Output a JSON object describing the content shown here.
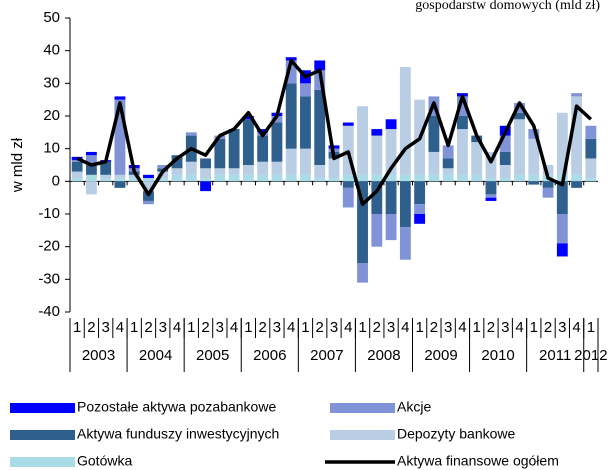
{
  "chart_data": {
    "type": "stacked-bar-line",
    "title": "gospodarstw domowych (mld zł)",
    "y_label": "w mld zł",
    "categories": [
      "1",
      "2",
      "3",
      "4",
      "1",
      "2",
      "3",
      "4",
      "1",
      "2",
      "3",
      "4",
      "1",
      "2",
      "3",
      "4",
      "1",
      "2",
      "3",
      "4",
      "1",
      "2",
      "3",
      "4",
      "1",
      "2",
      "3",
      "4",
      "1",
      "2",
      "3",
      "4",
      "1",
      "2",
      "3",
      "4",
      "1"
    ],
    "years": [
      "2003",
      "2004",
      "2005",
      "2006",
      "2007",
      "2008",
      "2009",
      "2010",
      "2011",
      "2012"
    ],
    "ylim": [
      -40,
      50
    ],
    "yticks": [
      -40,
      -30,
      -20,
      -10,
      0,
      10,
      20,
      30,
      40,
      50
    ],
    "series": [
      {
        "name": "Pozostałe aktywa pozabankowe",
        "color": "#0000ff",
        "values": [
          1,
          1,
          0.5,
          1,
          1,
          1,
          0,
          0,
          0,
          -3,
          0,
          0,
          1,
          1,
          1,
          1,
          4,
          3,
          1,
          1,
          0,
          2,
          3,
          0,
          -3,
          0,
          0,
          1,
          0,
          -1,
          3,
          0,
          0,
          0,
          -4,
          0,
          0
        ]
      },
      {
        "name": "Akcje",
        "color": "#7f93d6",
        "values": [
          0.5,
          3,
          0,
          23,
          1,
          -1,
          1,
          0,
          1,
          0,
          1,
          0,
          0,
          1,
          2,
          7,
          4,
          6,
          1,
          -6,
          -6,
          -10,
          -8,
          -10,
          -3,
          6,
          4,
          6,
          0,
          -1,
          5,
          3,
          3,
          -3,
          -9,
          1,
          4
        ]
      },
      {
        "name": "Aktywa funduszy inwestycyjnych",
        "color": "#2f5f8c",
        "values": [
          3,
          3,
          4,
          -2,
          1,
          -3,
          1,
          4,
          8,
          3,
          9,
          12,
          14,
          8,
          12,
          20,
          16,
          23,
          2,
          -2,
          -25,
          -10,
          -10,
          -14,
          -7,
          11,
          3,
          4,
          2,
          -4,
          4,
          2,
          -1,
          -2,
          -10,
          -2,
          6
        ]
      },
      {
        "name": "Depozyty bankowe",
        "color": "#b9cde5",
        "values": [
          2,
          -4,
          1,
          1,
          1,
          -3,
          2,
          2,
          4,
          3,
          2,
          2,
          3,
          4,
          4,
          8,
          8,
          4,
          6,
          15,
          21,
          12,
          14,
          33,
          23,
          7,
          2,
          14,
          10,
          8,
          4,
          17,
          11,
          3,
          19,
          24,
          6
        ]
      },
      {
        "name": "Gotówka",
        "color": "#a9dce6",
        "values": [
          1,
          2,
          1,
          1,
          1,
          1,
          1,
          2,
          2,
          1,
          2,
          2,
          2,
          2,
          2,
          2,
          2,
          1,
          1,
          2,
          2,
          2,
          2,
          2,
          2,
          2,
          2,
          2,
          2,
          1,
          1,
          2,
          2,
          2,
          2,
          2,
          1
        ]
      }
    ],
    "line": {
      "name": "Aktywa finansowe ogółem",
      "color": "#000000",
      "values": [
        7,
        5,
        6,
        24,
        3,
        -4,
        3,
        7,
        10,
        8,
        14,
        16,
        21,
        14,
        20,
        37,
        32,
        34,
        7,
        9,
        -7,
        -3,
        4,
        10,
        13,
        24,
        11,
        26,
        14,
        6,
        15,
        24,
        17,
        1,
        -1,
        23,
        19
      ]
    }
  }
}
